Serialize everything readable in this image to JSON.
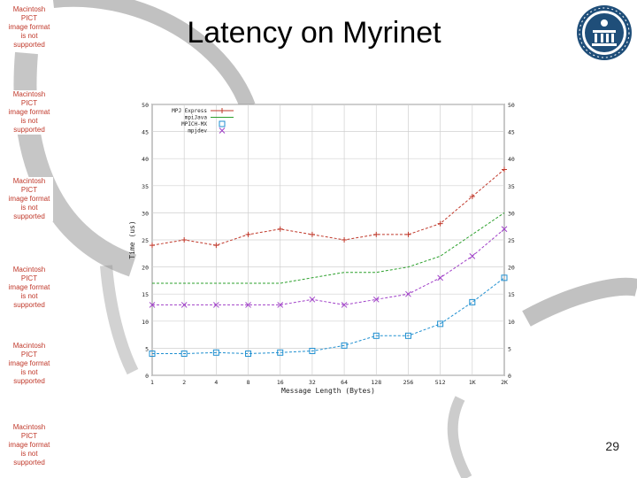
{
  "slide": {
    "title": "Latency on Myrinet",
    "page_number": "29",
    "placeholders": [
      [
        "Macintosh PICT",
        "image format",
        "is not supported"
      ],
      [
        "Macintosh PICT",
        "image format",
        "is not supported"
      ],
      [
        "Macintosh PICT",
        "image format",
        "is not supported"
      ],
      [
        "Macintosh PICT",
        "image format",
        "is not supported"
      ],
      [
        "Macintosh PICT",
        "image format",
        "is not supported"
      ],
      [
        "Macintosh PICT",
        "image format",
        "is not supported"
      ]
    ]
  },
  "colors": {
    "placeholder_text": "#c0392b",
    "swoosh": "#8e8e8e",
    "seal": "#1f4e79"
  },
  "icons": {
    "seal": "university-seal-icon"
  },
  "chart_data": {
    "type": "line",
    "title": "",
    "xlabel": "Message Length (Bytes)",
    "ylabel": "Time (us)",
    "categories": [
      "1",
      "2",
      "4",
      "8",
      "16",
      "32",
      "64",
      "128",
      "256",
      "512",
      "1K",
      "2K"
    ],
    "ylim": [
      0,
      50
    ],
    "yticks": [
      0,
      5,
      10,
      15,
      20,
      25,
      30,
      35,
      40,
      45,
      50
    ],
    "grid": true,
    "legend_position": "top-left",
    "series": [
      {
        "name": "MPJ Express",
        "color": "#c0392b",
        "marker": "cross",
        "values": [
          24,
          25,
          24,
          26,
          27,
          26,
          25,
          26,
          26,
          28,
          33,
          38
        ]
      },
      {
        "name": "mpiJava",
        "color": "#2ca02c",
        "marker": "none",
        "values": [
          17,
          17,
          17,
          17,
          17,
          18,
          19,
          19,
          20,
          22,
          26,
          30
        ]
      },
      {
        "name": "MPICH-MX",
        "color": "#1f8fd0",
        "marker": "square",
        "values": [
          4,
          4,
          4.2,
          4,
          4.2,
          4.5,
          5.5,
          7.3,
          7.3,
          9.5,
          13.5,
          18
        ]
      },
      {
        "name": "mpjdev",
        "color": "#a040c8",
        "marker": "x",
        "values": [
          13,
          13,
          13,
          13,
          13,
          14,
          13,
          14,
          15,
          18,
          22,
          27
        ]
      }
    ]
  }
}
